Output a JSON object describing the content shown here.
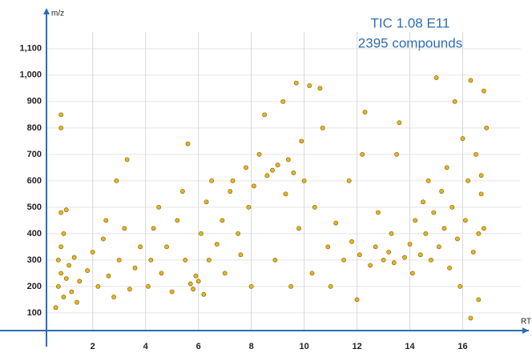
{
  "chart_data": {
    "type": "scatter",
    "annotations": [
      "TIC 1.08 E11",
      "2395 compounds"
    ],
    "xlabel": "RT",
    "ylabel": "m/z",
    "x": [
      0.6,
      0.7,
      0.8,
      0.7,
      0.9,
      1.0,
      1.1,
      0.8,
      0.9,
      1.2,
      1.3,
      0.8,
      1.0,
      0.8,
      0.8,
      1.4,
      1.5,
      1.8,
      2.0,
      2.2,
      2.4,
      2.6,
      2.8,
      3.0,
      3.2,
      3.4,
      3.6,
      3.8,
      2.9,
      3.3,
      2.5,
      4.1,
      4.2,
      4.3,
      4.5,
      4.6,
      4.8,
      5.0,
      5.2,
      5.4,
      5.5,
      5.7,
      5.8,
      5.9,
      6.0,
      6.1,
      6.2,
      6.3,
      6.4,
      5.6,
      6.5,
      6.7,
      6.9,
      7.0,
      7.2,
      7.3,
      7.5,
      7.6,
      7.8,
      7.9,
      8.0,
      8.1,
      8.3,
      8.5,
      8.6,
      8.8,
      8.9,
      9.0,
      9.2,
      9.3,
      9.4,
      9.5,
      9.6,
      9.7,
      9.8,
      9.9,
      10.0,
      10.2,
      10.3,
      10.4,
      10.6,
      10.7,
      10.9,
      11.0,
      11.2,
      11.5,
      11.7,
      11.8,
      12.0,
      12.1,
      12.2,
      12.3,
      12.5,
      12.7,
      12.8,
      13.0,
      13.2,
      13.3,
      13.4,
      13.5,
      13.6,
      13.8,
      14.0,
      14.1,
      14.2,
      14.4,
      14.5,
      14.6,
      14.7,
      14.8,
      14.9,
      15.0,
      15.1,
      15.2,
      15.3,
      15.4,
      15.5,
      15.6,
      15.7,
      15.8,
      15.9,
      16.0,
      16.1,
      16.2,
      16.3,
      16.3,
      16.4,
      16.5,
      16.6,
      16.7,
      16.8,
      16.8,
      16.9,
      16.7,
      16.6
    ],
    "values": [
      120,
      200,
      250,
      300,
      160,
      230,
      280,
      350,
      400,
      180,
      310,
      480,
      490,
      850,
      800,
      140,
      220,
      260,
      330,
      200,
      380,
      240,
      160,
      300,
      420,
      190,
      270,
      350,
      600,
      680,
      450,
      200,
      300,
      420,
      500,
      250,
      350,
      180,
      450,
      560,
      300,
      210,
      190,
      240,
      220,
      400,
      170,
      520,
      300,
      740,
      600,
      360,
      450,
      250,
      560,
      600,
      400,
      320,
      650,
      500,
      200,
      580,
      700,
      850,
      620,
      640,
      300,
      660,
      900,
      550,
      680,
      200,
      630,
      970,
      420,
      750,
      600,
      960,
      250,
      500,
      950,
      800,
      350,
      200,
      440,
      300,
      600,
      370,
      150,
      320,
      700,
      860,
      280,
      350,
      480,
      300,
      330,
      400,
      290,
      700,
      820,
      310,
      360,
      250,
      450,
      320,
      520,
      400,
      600,
      300,
      480,
      990,
      350,
      560,
      420,
      650,
      270,
      500,
      900,
      380,
      200,
      760,
      450,
      600,
      980,
      80,
      330,
      700,
      150,
      550,
      940,
      420,
      800,
      620,
      400
    ],
    "color": "#e6b422",
    "edge_color": "#7a5c00",
    "xlim": [
      0.25,
      18.5
    ],
    "xticks": [
      2,
      4,
      6,
      8,
      10,
      12,
      14,
      16
    ],
    "ylim": [
      33,
      1254
    ],
    "yticks": [
      100,
      200,
      300,
      400,
      500,
      600,
      700,
      800,
      900,
      {
        "value": 1000,
        "label": "1,000"
      },
      {
        "value": 1100,
        "label": "1,100"
      }
    ],
    "grid": true
  }
}
